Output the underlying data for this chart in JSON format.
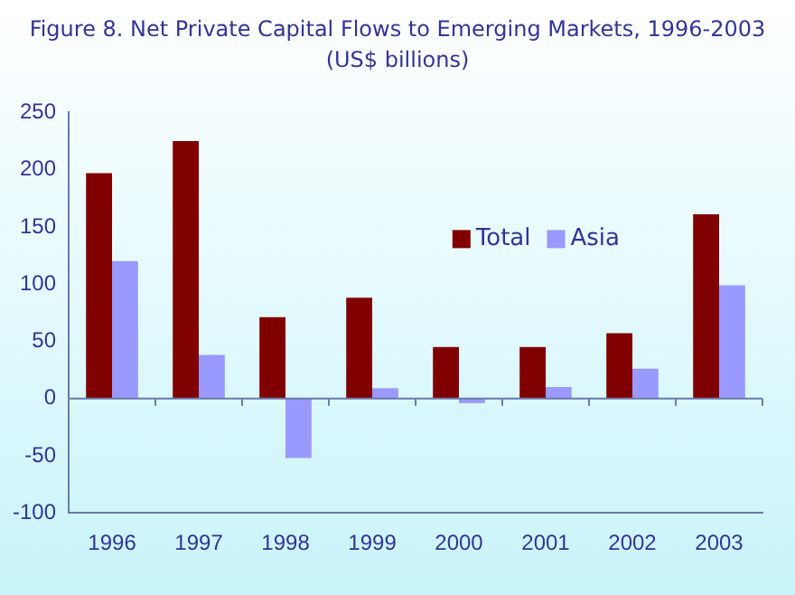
{
  "chart_data": {
    "type": "bar",
    "title": "Figure 8. Net Private Capital Flows to Emerging Markets, 1996-2003",
    "subtitle": "(US$ billions)",
    "categories": [
      "1996",
      "1997",
      "1998",
      "1999",
      "2000",
      "2001",
      "2002",
      "2003"
    ],
    "series": [
      {
        "name": "Total",
        "color": "#800000",
        "values": [
          197,
          225,
          71,
          88,
          45,
          45,
          57,
          161
        ]
      },
      {
        "name": "Asia",
        "color": "#9999ff",
        "values": [
          120,
          38,
          -52,
          9,
          -4,
          10,
          26,
          99
        ]
      }
    ],
    "ylim": [
      -100,
      250
    ],
    "yticks": [
      -100,
      -50,
      0,
      50,
      100,
      150,
      200,
      250
    ],
    "grid": false,
    "legend": "top right",
    "ref_lines": [
      {
        "axis": "y",
        "value": 0,
        "color": "#6a7aa8"
      }
    ]
  }
}
